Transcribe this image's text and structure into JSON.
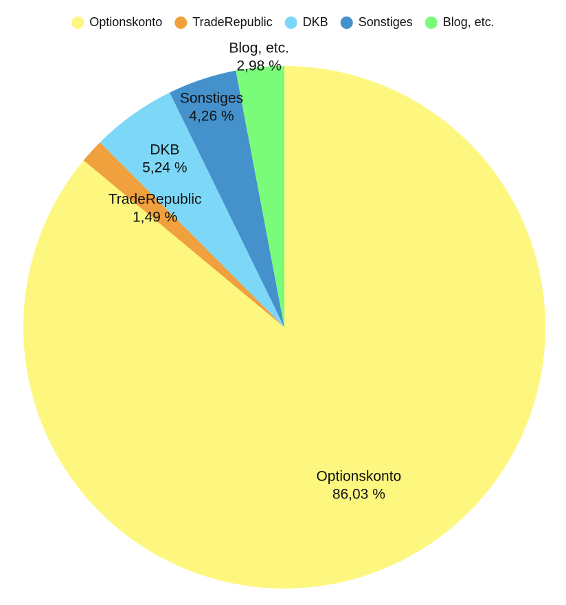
{
  "chart_data": {
    "type": "pie",
    "categories": [
      "Optionskonto",
      "TradeRepublic",
      "DKB",
      "Sonstiges",
      "Blog, etc."
    ],
    "values": [
      86.03,
      1.49,
      5.24,
      4.26,
      2.98
    ],
    "value_labels": [
      "86,03 %",
      "1,49 %",
      "5,24 %",
      "4,26 %",
      "2,98 %"
    ],
    "colors": [
      "#fdf77f",
      "#f0a03c",
      "#7dd8f8",
      "#4491cc",
      "#7afc7a"
    ],
    "legend": "top"
  }
}
